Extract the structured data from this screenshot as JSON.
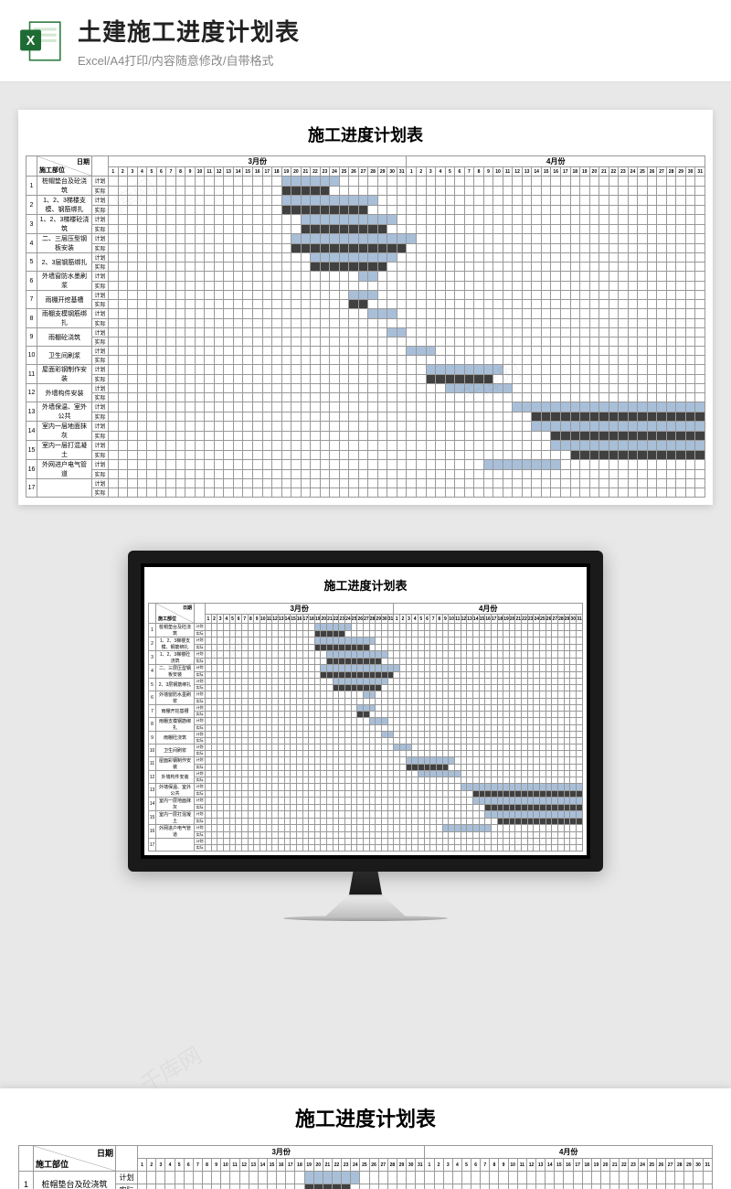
{
  "header": {
    "title": "土建施工进度计划表",
    "subtitle": "Excel/A4打印/内容随意修改/自带格式"
  },
  "sheet": {
    "title": "施工进度计划表",
    "corner_top": "日期",
    "corner_bottom": "施工部位",
    "months": [
      "3月份",
      "4月份"
    ],
    "days_per_month": 31,
    "sub_labels": [
      "计划",
      "实际"
    ],
    "colors": {
      "plan": "#a8bfd9",
      "actual": "#404040",
      "grid": "#999999"
    },
    "tasks": [
      {
        "num": 1,
        "name": "桩帽垫台及砼浇筑",
        "plan": [
          19,
          24
        ],
        "actual": [
          19,
          23
        ]
      },
      {
        "num": 2,
        "name": "1、2、3梯楼支模、钢筋绑扎",
        "plan": [
          19,
          28
        ],
        "actual": [
          19,
          27
        ]
      },
      {
        "num": 3,
        "name": "1、2、3梯楼砼浇筑",
        "plan": [
          21,
          30
        ],
        "actual": [
          21,
          29
        ]
      },
      {
        "num": 4,
        "name": "二、三层压型钢板安装",
        "plan": [
          20,
          32
        ],
        "actual": [
          20,
          31
        ]
      },
      {
        "num": 5,
        "name": "2、3层钢筋绑扎",
        "plan": [
          22,
          30
        ],
        "actual": [
          22,
          29
        ]
      },
      {
        "num": 6,
        "name": "外墙窗防水墨刷浆",
        "plan": [
          27,
          28
        ],
        "actual": []
      },
      {
        "num": 7,
        "name": "雨棚开挖基槽",
        "plan": [
          26,
          28
        ],
        "actual": [
          26,
          27
        ]
      },
      {
        "num": 8,
        "name": "雨棚支模钢筋绑扎",
        "plan": [
          28,
          30
        ],
        "actual": []
      },
      {
        "num": 9,
        "name": "雨棚砼浇筑",
        "plan": [
          30,
          31
        ],
        "actual": []
      },
      {
        "num": 10,
        "name": "卫生间刷浆",
        "plan": [
          32,
          34
        ],
        "actual": []
      },
      {
        "num": 11,
        "name": "屋面彩钢制作安装",
        "plan": [
          34,
          41
        ],
        "actual": [
          34,
          40
        ]
      },
      {
        "num": 12,
        "name": "外墙构件安装",
        "plan": [
          36,
          42
        ],
        "actual": []
      },
      {
        "num": 13,
        "name": "外墙保温、室外公共",
        "plan": [
          43,
          62
        ],
        "actual": [
          45,
          62
        ]
      },
      {
        "num": 14,
        "name": "室内一层地面抹灰",
        "plan": [
          45,
          62
        ],
        "actual": [
          47,
          62
        ]
      },
      {
        "num": 15,
        "name": "室内一层打混凝土",
        "plan": [
          47,
          62
        ],
        "actual": [
          49,
          62
        ]
      },
      {
        "num": 16,
        "name": "外网进户电气管道",
        "plan": [
          40,
          47
        ],
        "actual": []
      },
      {
        "num": 17,
        "name": "",
        "plan": [],
        "actual": []
      }
    ]
  },
  "watermark": "千库网"
}
